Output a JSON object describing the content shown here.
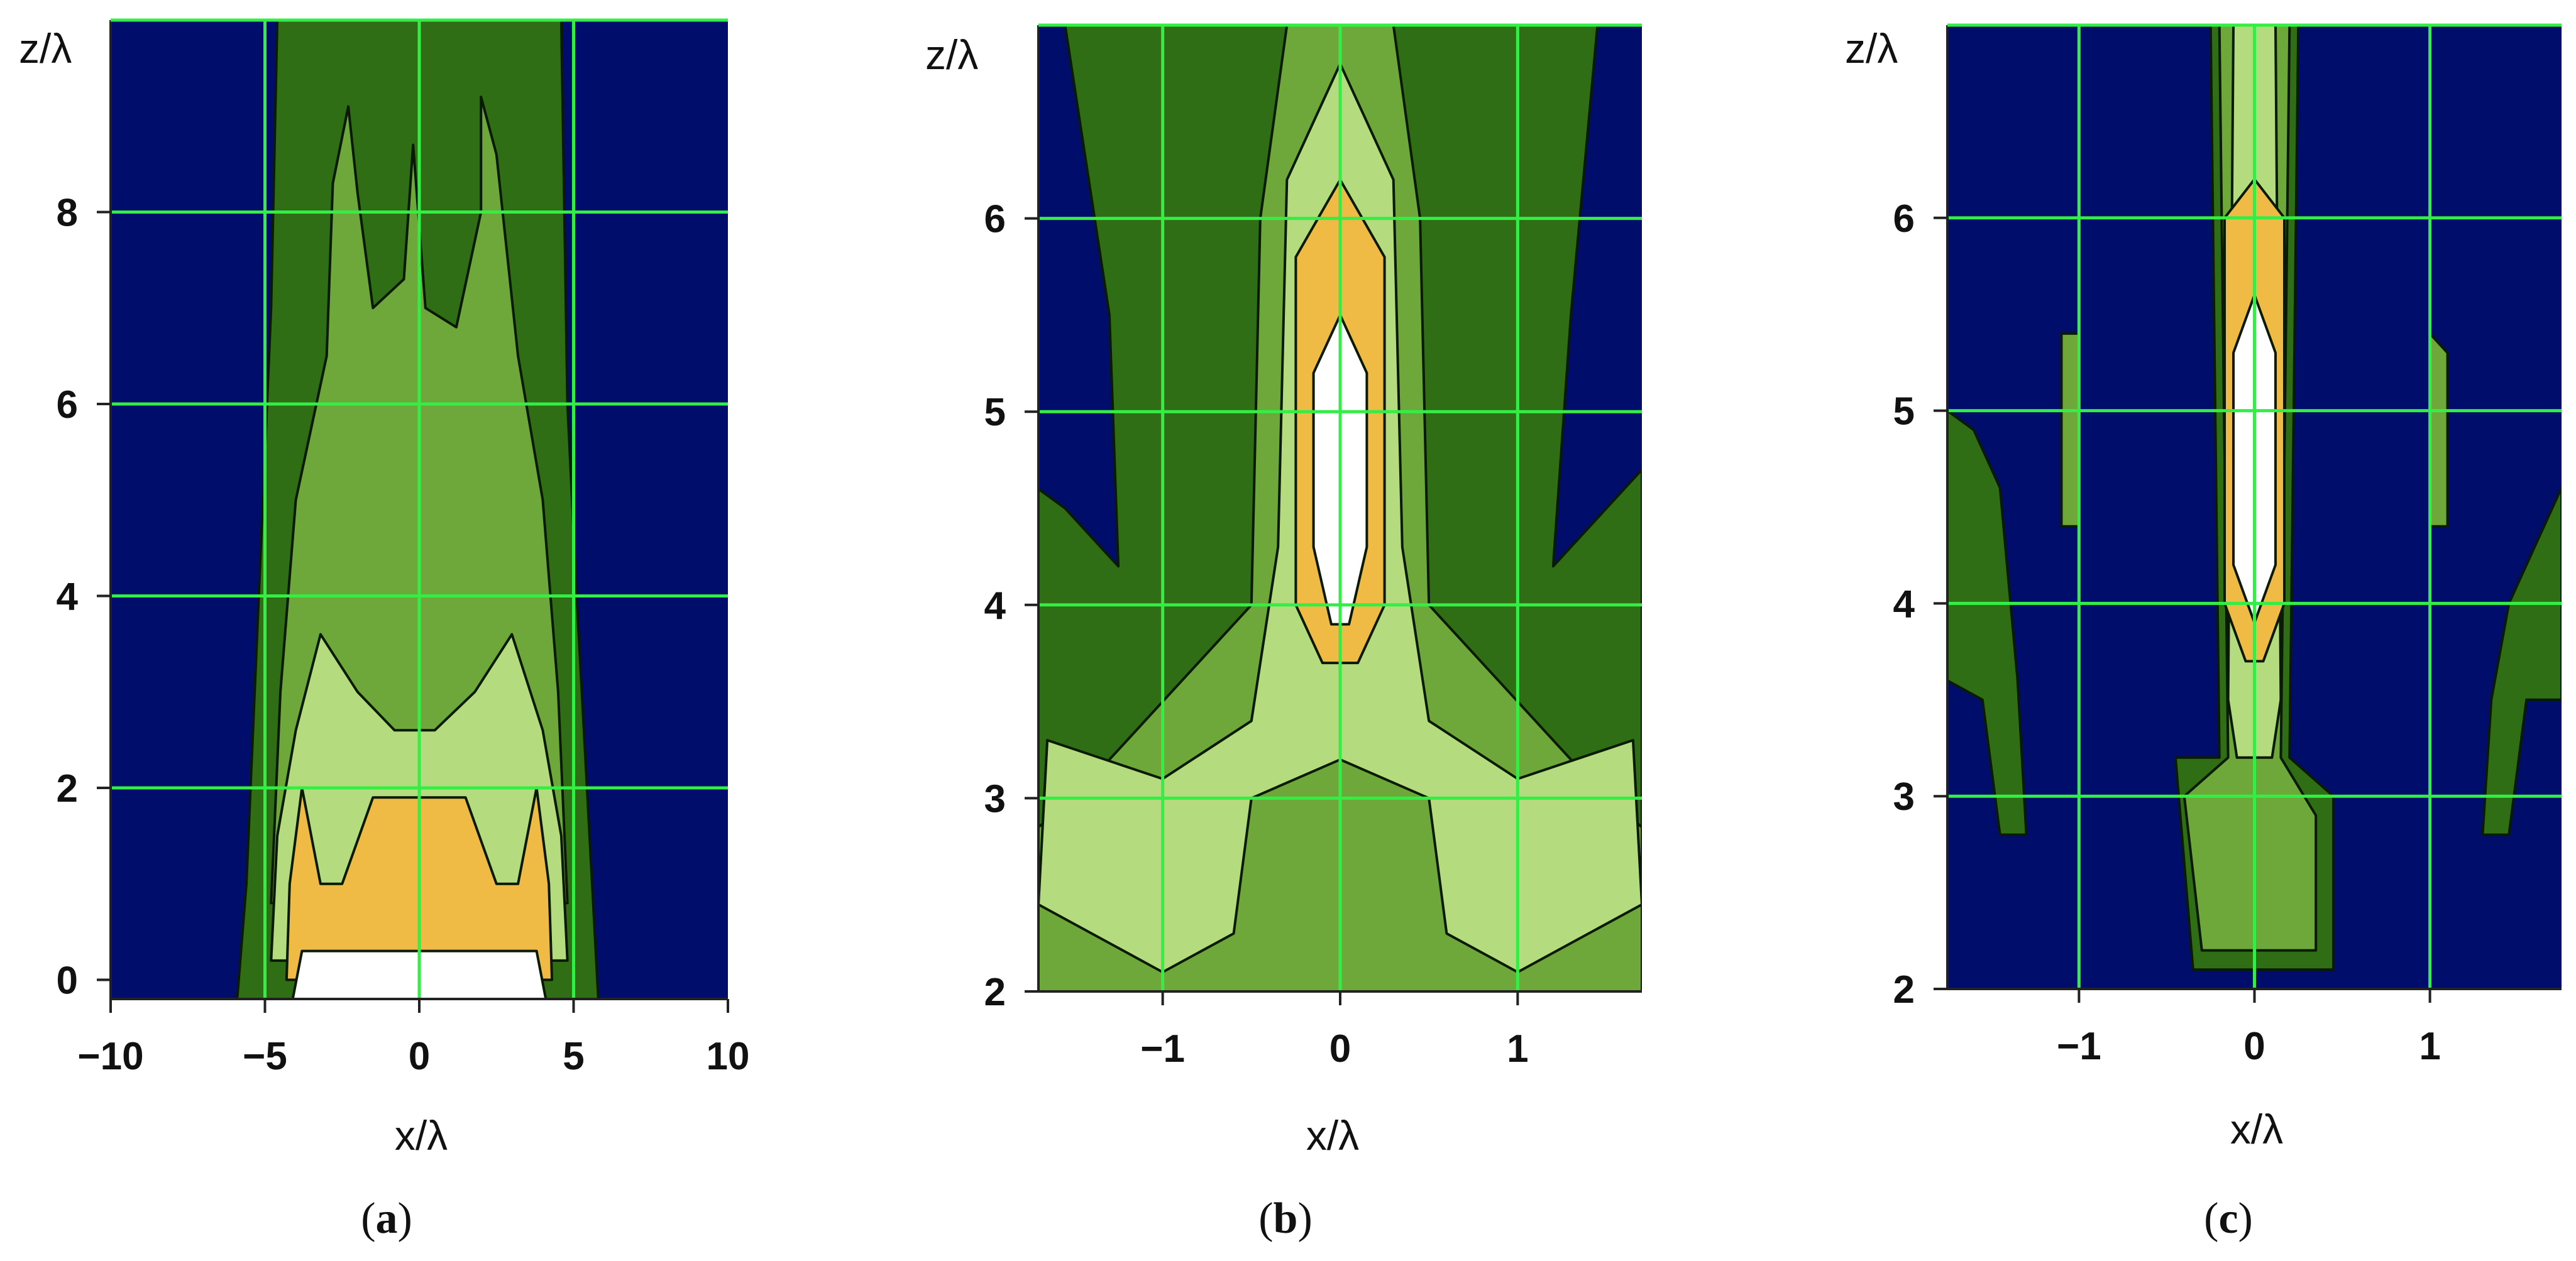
{
  "colors": {
    "background_level": "#000d6b",
    "level_1": "#2f6e14",
    "level_2": "#6fa83a",
    "level_3": "#b4db7e",
    "level_4": "#efbb45",
    "level_5": "#ffffff",
    "grid": "#33ee44"
  },
  "chart_data": [
    {
      "type": "heatmap",
      "caption": {
        "open": "(",
        "letter": "a",
        "close": ")"
      },
      "xlabel": "x/λ",
      "ylabel": "z/λ",
      "xlim": [
        -10,
        10
      ],
      "ylim": [
        -0.2,
        10
      ],
      "x_ticks": [
        -10,
        -5,
        0,
        5,
        10
      ],
      "y_ticks": [
        0,
        2,
        4,
        6,
        8
      ],
      "x_tick_labels": [
        "−10",
        "−5",
        "0",
        "5",
        "10"
      ],
      "y_tick_labels": [
        "0",
        "2",
        "4",
        "6",
        "8"
      ],
      "x_grid": [
        -5,
        0,
        5
      ],
      "y_grid": [
        2,
        4,
        6,
        8
      ],
      "grid": true,
      "contour_levels": [
        {
          "level": 1,
          "boundary": [
            [
              -4.6,
              10
            ],
            [
              4.6,
              10
            ],
            [
              4.8,
              6
            ],
            [
              5.1,
              4
            ],
            [
              5.6,
              1
            ],
            [
              5.8,
              -0.2
            ],
            [
              -5.9,
              -0.2
            ],
            [
              -5.6,
              1
            ],
            [
              -5.2,
              4
            ],
            [
              -4.8,
              7
            ]
          ]
        },
        {
          "level": 2,
          "boundary": [
            [
              -4.8,
              0.8
            ],
            [
              -4.5,
              3
            ],
            [
              -4.0,
              5
            ],
            [
              -3.0,
              6.5
            ],
            [
              -2.8,
              8.3
            ],
            [
              -2.3,
              9.1
            ],
            [
              -2.0,
              8.2
            ],
            [
              -1.5,
              7.0
            ],
            [
              -0.5,
              7.3
            ],
            [
              -0.2,
              8.7
            ],
            [
              0.2,
              7.0
            ],
            [
              1.2,
              6.8
            ],
            [
              2.0,
              8.0
            ],
            [
              2.0,
              9.2
            ],
            [
              2.5,
              8.6
            ],
            [
              3.2,
              6.5
            ],
            [
              4.0,
              5
            ],
            [
              4.5,
              3
            ],
            [
              4.8,
              0.8
            ],
            [
              0,
              0.8
            ]
          ]
        },
        {
          "level": 3,
          "boundary": [
            [
              -4.8,
              0.2
            ],
            [
              -4.6,
              1.5
            ],
            [
              -4.0,
              2.6
            ],
            [
              -3.2,
              3.6
            ],
            [
              -2.0,
              3.0
            ],
            [
              -0.8,
              2.6
            ],
            [
              0.5,
              2.6
            ],
            [
              1.8,
              3.0
            ],
            [
              3.0,
              3.6
            ],
            [
              4.0,
              2.6
            ],
            [
              4.6,
              1.5
            ],
            [
              4.8,
              0.2
            ]
          ]
        },
        {
          "level": 4,
          "boundary": [
            [
              -4.3,
              0.0
            ],
            [
              -4.2,
              1.0
            ],
            [
              -3.8,
              2.0
            ],
            [
              -3.2,
              1.0
            ],
            [
              -2.5,
              1.0
            ],
            [
              -1.5,
              1.9
            ],
            [
              1.5,
              1.9
            ],
            [
              2.5,
              1.0
            ],
            [
              3.2,
              1.0
            ],
            [
              3.8,
              2.0
            ],
            [
              4.2,
              1.0
            ],
            [
              4.3,
              0.0
            ]
          ]
        },
        {
          "level": 5,
          "boundary": [
            [
              -4.1,
              -0.2
            ],
            [
              -3.8,
              0.3
            ],
            [
              -2.5,
              0.3
            ],
            [
              2.5,
              0.3
            ],
            [
              3.8,
              0.3
            ],
            [
              4.1,
              -0.2
            ]
          ]
        }
      ]
    },
    {
      "type": "heatmap",
      "caption": {
        "open": "(",
        "letter": "b",
        "close": ")"
      },
      "xlabel": "x/λ",
      "ylabel": "z/λ",
      "xlim": [
        -1.7,
        1.7
      ],
      "ylim": [
        2,
        7
      ],
      "x_ticks": [
        -1,
        0,
        1
      ],
      "y_ticks": [
        2,
        3,
        4,
        5,
        6
      ],
      "x_tick_labels": [
        "−1",
        "0",
        "1"
      ],
      "y_tick_labels": [
        "2",
        "3",
        "4",
        "5",
        "6"
      ],
      "x_grid": [
        -1,
        0,
        1
      ],
      "y_grid": [
        3,
        4,
        5,
        6
      ],
      "grid": true,
      "contour_levels": [
        {
          "level": 1,
          "boundary": [
            [
              -1.55,
              7
            ],
            [
              1.45,
              7
            ],
            [
              1.3,
              5.5
            ],
            [
              1.2,
              4.2
            ],
            [
              1.4,
              4.4
            ],
            [
              1.6,
              4.6
            ],
            [
              1.7,
              4.7
            ],
            [
              1.7,
              2
            ],
            [
              -1.7,
              2
            ],
            [
              -1.7,
              4.6
            ],
            [
              -1.55,
              4.5
            ],
            [
              -1.25,
              4.2
            ],
            [
              -1.3,
              5.5
            ]
          ]
        },
        {
          "level": 2,
          "boundary": [
            [
              -1.7,
              2.85
            ],
            [
              -1.5,
              3.0
            ],
            [
              -1.2,
              3.3
            ],
            [
              -0.9,
              3.6
            ],
            [
              -0.5,
              4.0
            ],
            [
              -0.45,
              6.0
            ],
            [
              -0.3,
              7.0
            ],
            [
              0.3,
              7.0
            ],
            [
              0.45,
              6.0
            ],
            [
              0.5,
              4.0
            ],
            [
              0.9,
              3.6
            ],
            [
              1.2,
              3.3
            ],
            [
              1.5,
              3.0
            ],
            [
              1.7,
              2.85
            ],
            [
              1.7,
              2
            ],
            [
              -1.7,
              2
            ]
          ]
        },
        {
          "level": 3,
          "boundary": [
            [
              -1.7,
              2.45
            ],
            [
              -1.65,
              3.3
            ],
            [
              -1.0,
              3.1
            ],
            [
              -0.5,
              3.4
            ],
            [
              -0.35,
              4.3
            ],
            [
              -0.3,
              6.2
            ],
            [
              0.0,
              6.8
            ],
            [
              0.3,
              6.2
            ],
            [
              0.35,
              4.3
            ],
            [
              0.5,
              3.4
            ],
            [
              1.0,
              3.1
            ],
            [
              1.65,
              3.3
            ],
            [
              1.7,
              2.45
            ],
            [
              1.0,
              2.1
            ],
            [
              0.6,
              2.3
            ],
            [
              0.5,
              3.0
            ],
            [
              0.0,
              3.2
            ],
            [
              -0.5,
              3.0
            ],
            [
              -0.6,
              2.3
            ],
            [
              -1.0,
              2.1
            ]
          ]
        },
        {
          "level": 4,
          "boundary": [
            [
              -0.25,
              4.0
            ],
            [
              -0.25,
              5.8
            ],
            [
              0.0,
              6.2
            ],
            [
              0.25,
              5.8
            ],
            [
              0.25,
              4.0
            ],
            [
              0.1,
              3.7
            ],
            [
              -0.1,
              3.7
            ]
          ]
        },
        {
          "level": 5,
          "boundary": [
            [
              -0.15,
              4.3
            ],
            [
              -0.15,
              5.2
            ],
            [
              0.0,
              5.5
            ],
            [
              0.15,
              5.2
            ],
            [
              0.15,
              4.3
            ],
            [
              0.05,
              3.9
            ],
            [
              -0.05,
              3.9
            ]
          ]
        }
      ]
    },
    {
      "type": "heatmap",
      "caption": {
        "open": "(",
        "letter": "c",
        "close": ")"
      },
      "xlabel": "x/λ",
      "ylabel": "z/λ",
      "xlim": [
        -1.75,
        1.75
      ],
      "ylim": [
        2,
        7
      ],
      "x_ticks": [
        -1,
        0,
        1
      ],
      "y_ticks": [
        2,
        3,
        4,
        5,
        6
      ],
      "x_tick_labels": [
        "−1",
        "0",
        "1"
      ],
      "y_tick_labels": [
        "2",
        "3",
        "4",
        "5",
        "6"
      ],
      "x_grid": [
        -1,
        0,
        1
      ],
      "y_grid": [
        3,
        4,
        5,
        6
      ],
      "grid": true,
      "contour_levels": [
        {
          "level": 1,
          "boundary": [
            [
              -0.25,
              7
            ],
            [
              0.25,
              7
            ],
            [
              0.2,
              3.2
            ],
            [
              0.45,
              3.0
            ],
            [
              0.45,
              2.1
            ],
            [
              -0.35,
              2.1
            ],
            [
              -0.45,
              3.2
            ],
            [
              -0.2,
              3.2
            ]
          ]
        },
        {
          "level": 2,
          "boundary": [
            [
              -0.2,
              7
            ],
            [
              0.2,
              7
            ],
            [
              0.15,
              3.2
            ],
            [
              0.35,
              2.9
            ],
            [
              0.35,
              2.2
            ],
            [
              -0.3,
              2.2
            ],
            [
              -0.4,
              3.0
            ],
            [
              -0.15,
              3.2
            ]
          ]
        },
        {
          "level": 3,
          "boundary": [
            [
              -0.12,
              7
            ],
            [
              0.12,
              7
            ],
            [
              0.15,
              3.5
            ],
            [
              0.1,
              3.2
            ],
            [
              -0.1,
              3.2
            ],
            [
              -0.15,
              3.5
            ]
          ]
        },
        {
          "level": 4,
          "boundary": [
            [
              -0.17,
              4.0
            ],
            [
              -0.17,
              6.0
            ],
            [
              0.0,
              6.2
            ],
            [
              0.17,
              6.0
            ],
            [
              0.17,
              4.0
            ],
            [
              0.05,
              3.7
            ],
            [
              -0.05,
              3.7
            ]
          ]
        },
        {
          "level": 5,
          "boundary": [
            [
              -0.12,
              4.2
            ],
            [
              -0.12,
              5.3
            ],
            [
              0.0,
              5.6
            ],
            [
              0.12,
              5.3
            ],
            [
              0.12,
              4.2
            ],
            [
              0.0,
              3.9
            ]
          ]
        }
      ],
      "side_patches": [
        {
          "level": 1,
          "boundary": [
            [
              -1.75,
              5.0
            ],
            [
              -1.6,
              4.9
            ],
            [
              -1.45,
              4.6
            ],
            [
              -1.35,
              3.6
            ],
            [
              -1.3,
              2.8
            ],
            [
              -1.45,
              2.8
            ],
            [
              -1.55,
              3.5
            ],
            [
              -1.75,
              3.6
            ]
          ]
        },
        {
          "level": 1,
          "boundary": [
            [
              1.75,
              4.6
            ],
            [
              1.6,
              4.3
            ],
            [
              1.45,
              4.0
            ],
            [
              1.35,
              3.5
            ],
            [
              1.3,
              2.8
            ],
            [
              1.45,
              2.8
            ],
            [
              1.55,
              3.5
            ],
            [
              1.75,
              3.5
            ]
          ]
        },
        {
          "level": 2,
          "boundary": [
            [
              -1.1,
              5.4
            ],
            [
              -1.0,
              5.4
            ],
            [
              -1.0,
              4.4
            ],
            [
              -1.1,
              4.4
            ]
          ]
        },
        {
          "level": 2,
          "boundary": [
            [
              1.0,
              5.4
            ],
            [
              1.1,
              5.3
            ],
            [
              1.1,
              4.4
            ],
            [
              1.0,
              4.4
            ]
          ]
        }
      ]
    }
  ]
}
